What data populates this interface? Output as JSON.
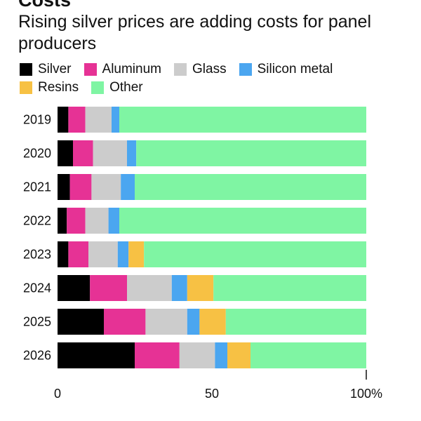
{
  "page": {
    "title_partial": "Costs",
    "subtitle": "Rising silver prices are adding costs for panel producers"
  },
  "legend": [
    {
      "label": "Silver",
      "color": "#000000"
    },
    {
      "label": "Aluminum",
      "color": "#e63295"
    },
    {
      "label": "Glass",
      "color": "#cccccc"
    },
    {
      "label": "Silicon metal",
      "color": "#4ba6f0"
    },
    {
      "label": "Resins",
      "color": "#f7c144"
    },
    {
      "label": "Other",
      "color": "#7ff5a3"
    }
  ],
  "chart_data": {
    "type": "bar",
    "orientation": "horizontal",
    "stacked": "percent",
    "categories": [
      "2019",
      "2020",
      "2021",
      "2022",
      "2023",
      "2024",
      "2025",
      "2026"
    ],
    "series": [
      {
        "name": "Silver",
        "color": "#000000",
        "values": [
          3.5,
          5,
          4,
          3,
          3.5,
          10.5,
          15,
          25
        ]
      },
      {
        "name": "Aluminum",
        "color": "#e63295",
        "values": [
          5.5,
          6.5,
          7,
          6,
          6.5,
          12,
          13.5,
          14.5
        ]
      },
      {
        "name": "Glass",
        "color": "#cccccc",
        "values": [
          8.5,
          11,
          9.5,
          7.5,
          9.5,
          14.5,
          13.5,
          11.5
        ]
      },
      {
        "name": "Silicon metal",
        "color": "#4ba6f0",
        "values": [
          2.5,
          3,
          4.5,
          3.5,
          3.5,
          5,
          4,
          4
        ]
      },
      {
        "name": "Resins",
        "color": "#f7c144",
        "values": [
          0,
          0,
          0,
          0,
          5,
          8.5,
          8.5,
          7.5
        ]
      },
      {
        "name": "Other",
        "color": "#7ff5a3",
        "values": [
          80,
          74.5,
          75,
          80,
          72,
          49.5,
          45.5,
          37.5
        ]
      }
    ],
    "xlim": [
      0,
      100
    ],
    "xticks": [
      {
        "value": 0,
        "label": "0"
      },
      {
        "value": 50,
        "label": "50"
      },
      {
        "value": 100,
        "label": "100%"
      }
    ],
    "grid": false,
    "legend_position": "top"
  }
}
